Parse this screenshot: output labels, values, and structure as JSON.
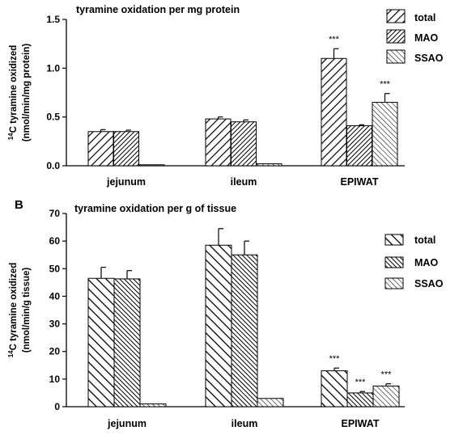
{
  "chart_data": [
    {
      "type": "bar",
      "panel_label": "",
      "title": "tyramine oxidation per mg protein",
      "ylabel_sup": "14",
      "ylabel_line1": "C tyramine oxidized",
      "ylabel_line2": "(nmol/min/mg protein)",
      "categories": [
        "jejunum",
        "ileum",
        "EPIWAT"
      ],
      "ylim": [
        0,
        1.5
      ],
      "yticks": [
        0,
        0.5,
        1.0,
        1.5
      ],
      "ytick_labels": [
        "0.0",
        "0.5",
        "1.0",
        "1.5"
      ],
      "legend_position": "top-right",
      "series": [
        {
          "name": "total",
          "values": [
            0.35,
            0.48,
            1.1
          ],
          "errors": [
            0.02,
            0.02,
            0.1
          ],
          "sig": [
            "",
            "",
            "***"
          ]
        },
        {
          "name": "MAO",
          "values": [
            0.35,
            0.45,
            0.41
          ],
          "errors": [
            0.015,
            0.02,
            0.01
          ],
          "sig": [
            "",
            "",
            ""
          ]
        },
        {
          "name": "SSAO",
          "values": [
            0.01,
            0.02,
            0.65
          ],
          "errors": [
            0.0,
            0.0,
            0.09
          ],
          "sig": [
            "",
            "",
            "***"
          ]
        }
      ]
    },
    {
      "type": "bar",
      "panel_label": "B",
      "title": "tyramine oxidation per g of tissue",
      "ylabel_sup": "14",
      "ylabel_line1": "C tyramine oxidized",
      "ylabel_line2": "(nmol/min/g tissue)",
      "categories": [
        "jejunum",
        "ileum",
        "EPIWAT"
      ],
      "ylim": [
        0,
        70
      ],
      "yticks": [
        0,
        10,
        20,
        30,
        40,
        50,
        60,
        70
      ],
      "ytick_labels": [
        "0",
        "10",
        "20",
        "30",
        "40",
        "50",
        "60",
        "70"
      ],
      "legend_position": "right",
      "series": [
        {
          "name": "total",
          "values": [
            46.5,
            58.5,
            13.0
          ],
          "errors": [
            4.0,
            6.0,
            1.0
          ],
          "sig": [
            "",
            "",
            "***"
          ]
        },
        {
          "name": "MAO",
          "values": [
            46.3,
            55.0,
            5.0
          ],
          "errors": [
            3.0,
            5.0,
            0.5
          ],
          "sig": [
            "",
            "",
            "***"
          ]
        },
        {
          "name": "SSAO",
          "values": [
            1.0,
            3.0,
            7.5
          ],
          "errors": [
            0.0,
            0.0,
            0.8
          ],
          "sig": [
            "",
            "",
            "***"
          ]
        }
      ]
    }
  ]
}
